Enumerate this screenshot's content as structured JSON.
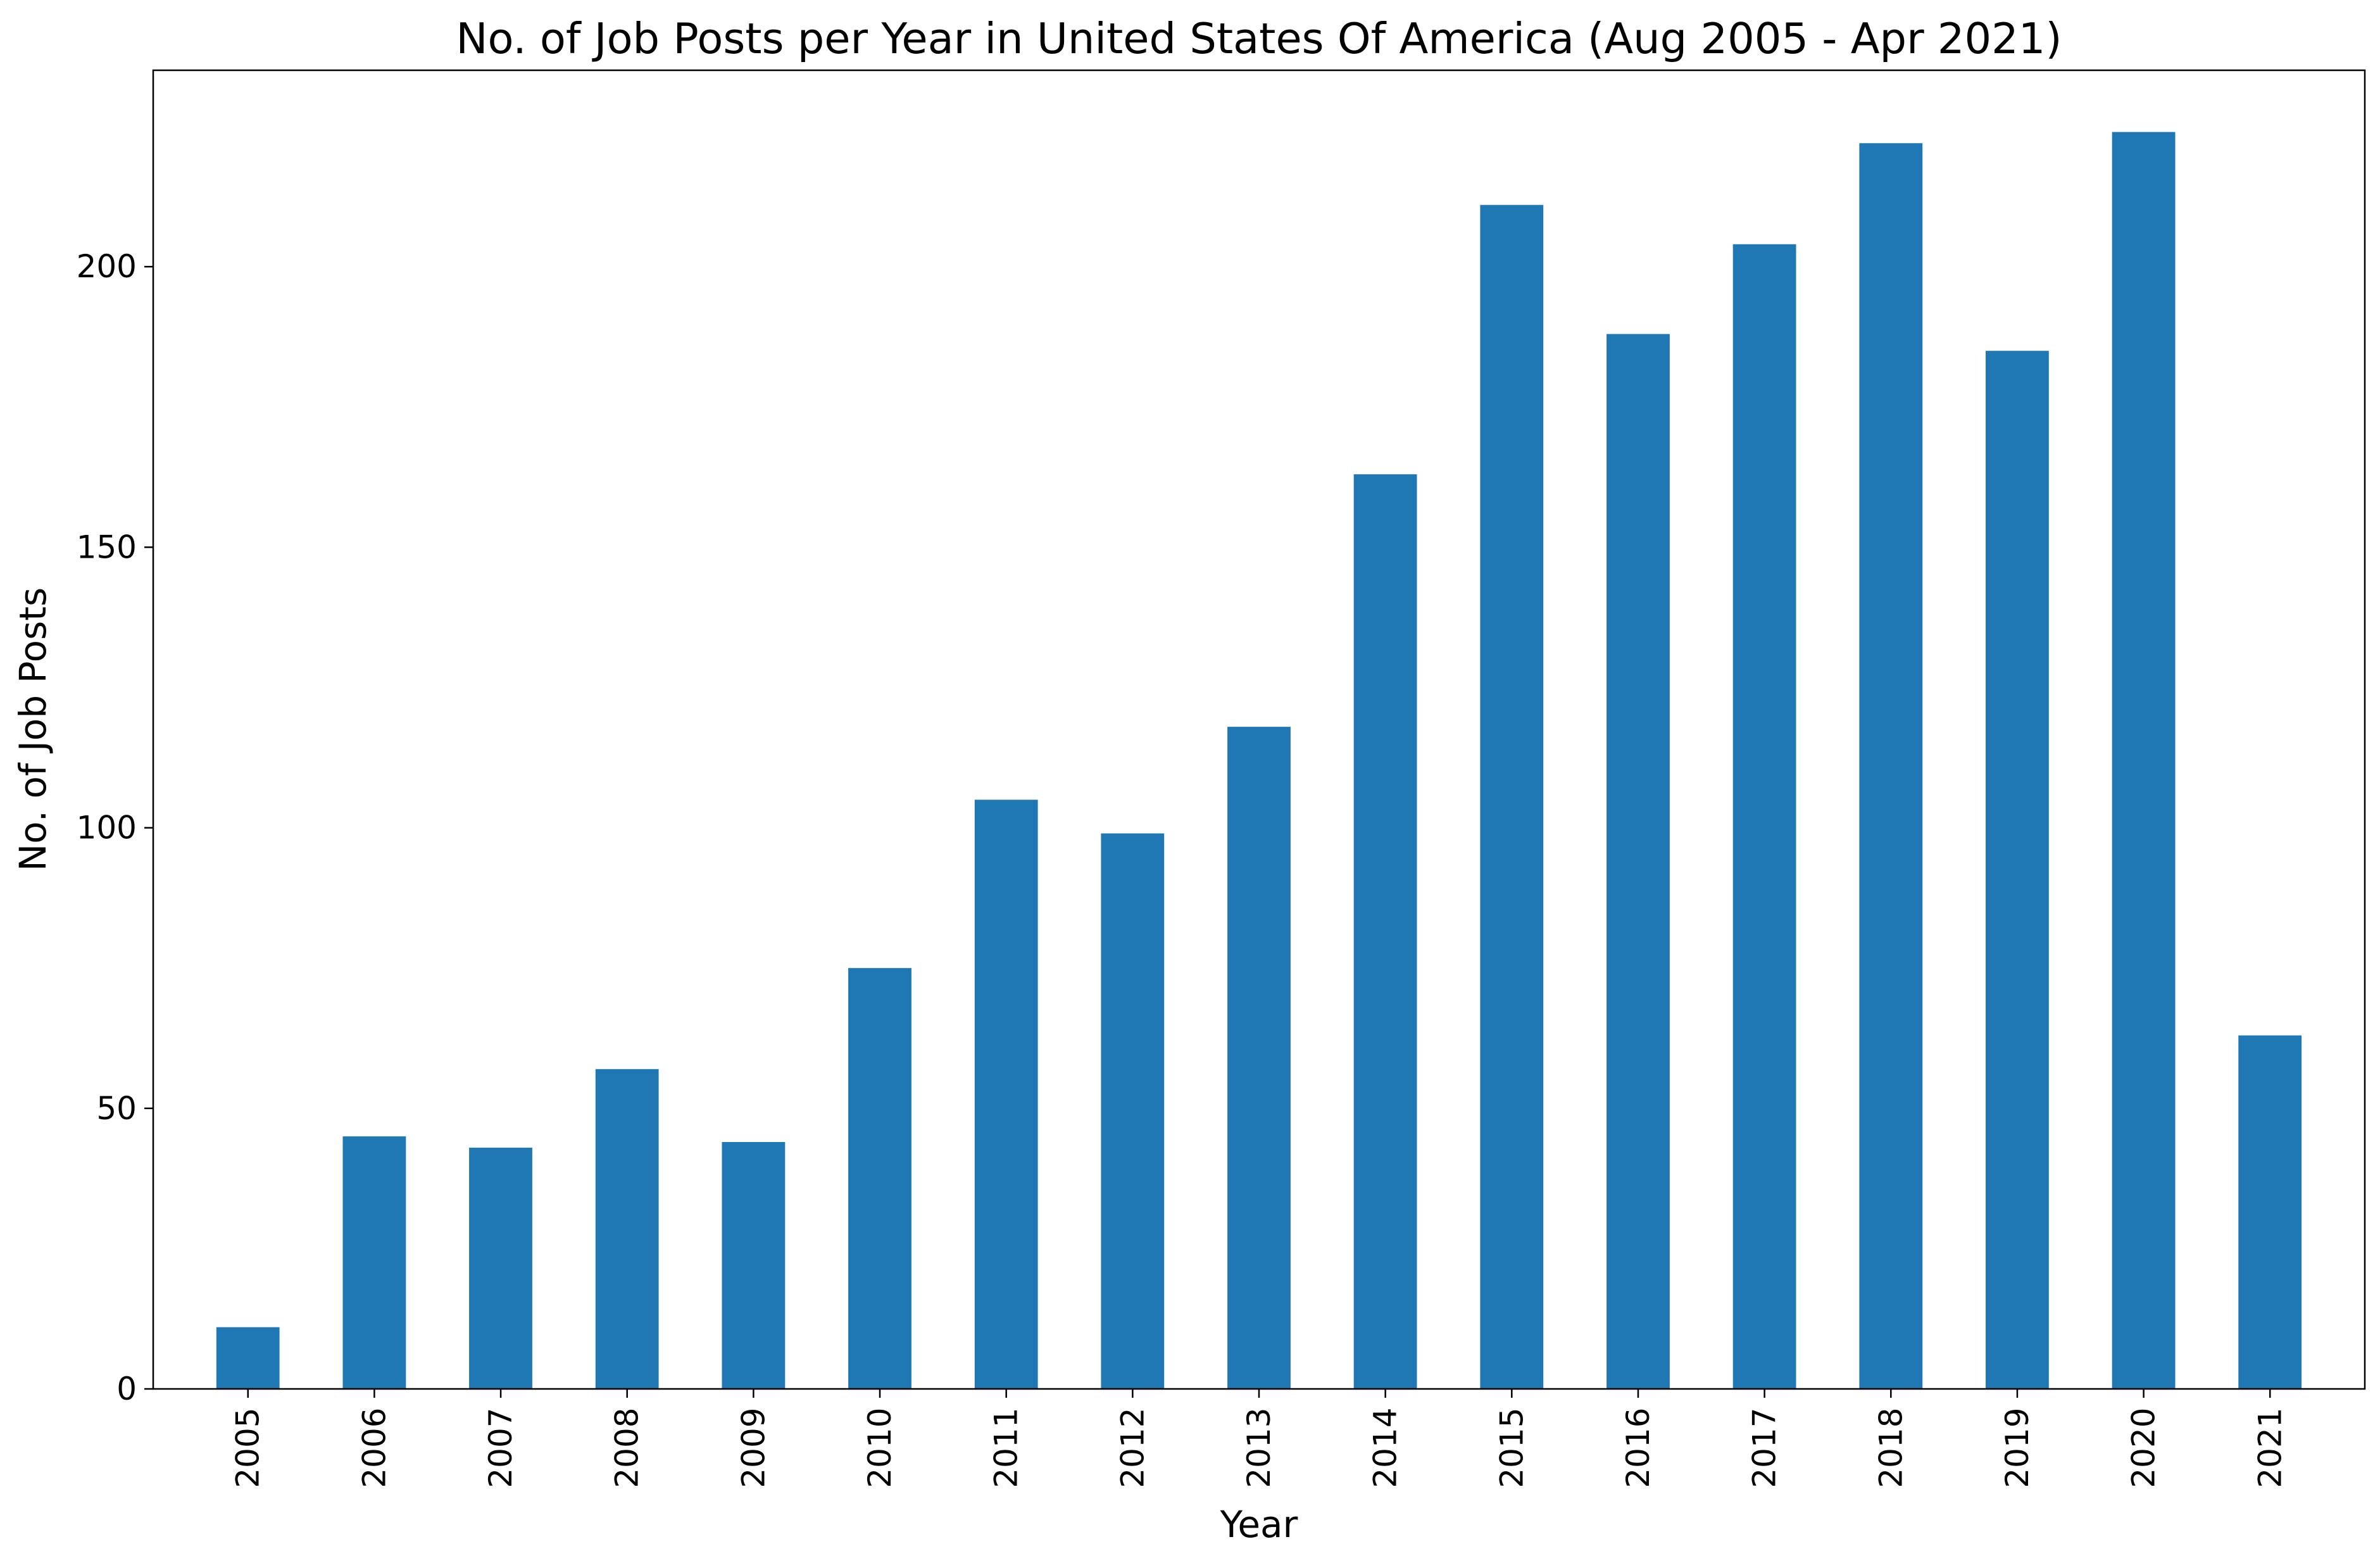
{
  "chart_data": {
    "type": "bar",
    "title": "No. of Job Posts per Year in United States Of America (Aug 2005 - Apr 2021)",
    "xlabel": "Year",
    "ylabel": "No. of Job Posts",
    "categories": [
      "2005",
      "2006",
      "2007",
      "2008",
      "2009",
      "2010",
      "2011",
      "2012",
      "2013",
      "2014",
      "2015",
      "2016",
      "2017",
      "2018",
      "2019",
      "2020",
      "2021"
    ],
    "values": [
      11,
      45,
      43,
      57,
      44,
      75,
      105,
      99,
      118,
      163,
      211,
      188,
      204,
      222,
      185,
      224,
      63
    ],
    "ylim": [
      0,
      235
    ],
    "yticks": [
      0,
      50,
      100,
      150,
      200
    ],
    "ytick_labels": [
      "0",
      "50",
      "100",
      "150",
      "200"
    ],
    "grid": false,
    "legend": "none",
    "bar_color": "#1f77b4"
  }
}
